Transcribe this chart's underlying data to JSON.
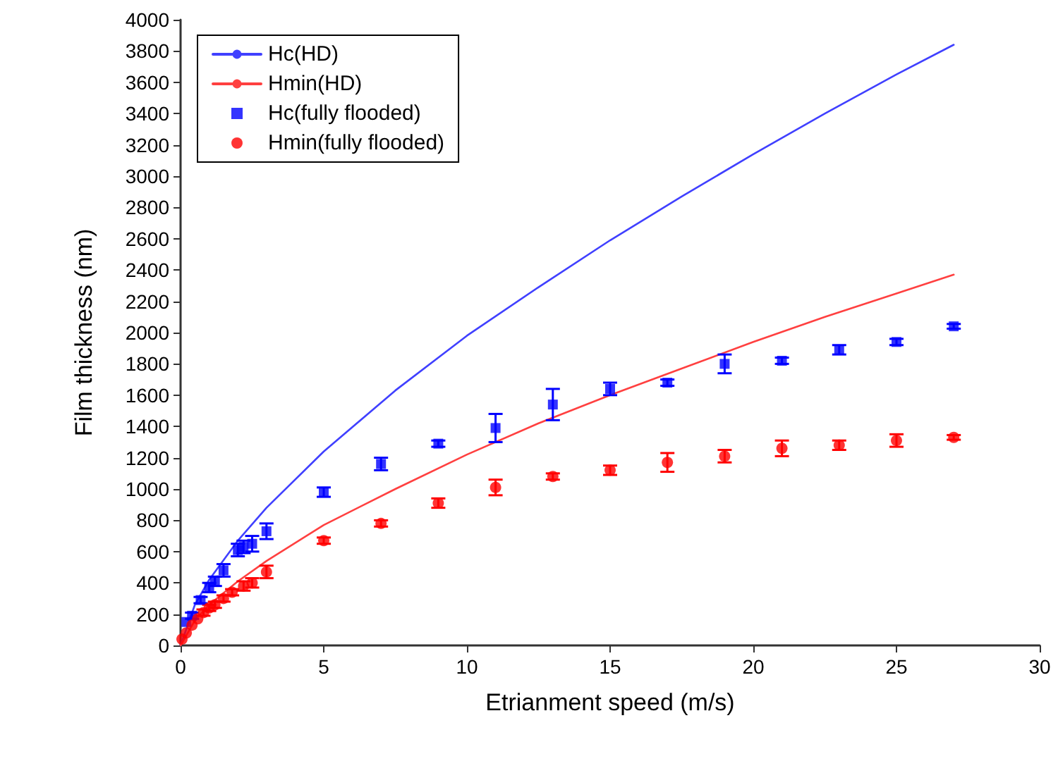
{
  "chart_data": {
    "type": "scatter",
    "xlabel": "Etrianment speed (m/s)",
    "ylabel": "Film thickness (nm)",
    "xlim": [
      0,
      30
    ],
    "xticks": [
      0,
      5,
      10,
      15,
      20,
      25,
      30
    ],
    "ylim": [
      0,
      4000
    ],
    "yticks": [
      0,
      200,
      400,
      600,
      800,
      1000,
      1200,
      1400,
      1600,
      1800,
      2000,
      2200,
      2400,
      2600,
      2800,
      3000,
      3200,
      3400,
      3600,
      3800,
      4000
    ],
    "grid": false,
    "legend": "top left",
    "series": [
      {
        "name": "Hc(HD)",
        "type": "line",
        "color": "#4040ff",
        "marker": "none",
        "line_style": "solid",
        "x": [
          0,
          0.5,
          1,
          2,
          3,
          5,
          7.5,
          10,
          12.5,
          15,
          17.5,
          20,
          22.5,
          25,
          27
        ],
        "values": [
          0,
          260,
          420,
          670,
          880,
          1240,
          1630,
          1980,
          2290,
          2590,
          2870,
          3140,
          3400,
          3650,
          3840
        ]
      },
      {
        "name": "Hmin(HD)",
        "type": "line",
        "color": "#ff4040",
        "marker": "none",
        "line_style": "solid",
        "x": [
          0,
          0.5,
          1,
          2,
          3,
          5,
          7.5,
          10,
          12.5,
          15,
          17.5,
          20,
          22.5,
          25,
          27
        ],
        "values": [
          0,
          160,
          260,
          410,
          540,
          770,
          1000,
          1220,
          1420,
          1600,
          1770,
          1940,
          2100,
          2250,
          2370
        ]
      },
      {
        "name": "Hc(fully flooded)",
        "color": "#0000ff",
        "marker": "square",
        "x": [
          0.2,
          0.4,
          0.7,
          1,
          1.2,
          1.5,
          2,
          2.2,
          2.5,
          3,
          5,
          7,
          9,
          11,
          13,
          15,
          17,
          19,
          21,
          23,
          25,
          27
        ],
        "values": [
          150,
          190,
          290,
          370,
          410,
          480,
          610,
          630,
          650,
          730,
          980,
          1160,
          1290,
          1390,
          1540,
          1640,
          1680,
          1800,
          1820,
          1890,
          1940,
          2040
        ],
        "errors": [
          null,
          20,
          20,
          30,
          30,
          40,
          40,
          40,
          50,
          50,
          30,
          40,
          20,
          90,
          100,
          40,
          20,
          60,
          20,
          30,
          20,
          15
        ]
      },
      {
        "name": "Hmin(fully flooded)",
        "color": "#ff0000",
        "marker": "circle",
        "x": [
          0.05,
          0.2,
          0.4,
          0.6,
          0.8,
          1,
          1.2,
          1.5,
          1.8,
          2.2,
          2.5,
          3,
          5,
          7,
          9,
          11,
          13,
          15,
          17,
          19,
          21,
          23,
          25,
          27
        ],
        "values": [
          40,
          80,
          130,
          170,
          210,
          240,
          260,
          300,
          340,
          380,
          400,
          470,
          670,
          780,
          910,
          1010,
          1080,
          1120,
          1170,
          1210,
          1260,
          1280,
          1310,
          1330
        ],
        "errors": [
          null,
          null,
          null,
          null,
          20,
          20,
          20,
          20,
          20,
          30,
          30,
          40,
          20,
          20,
          30,
          50,
          20,
          30,
          60,
          40,
          50,
          30,
          40,
          15
        ]
      }
    ]
  }
}
